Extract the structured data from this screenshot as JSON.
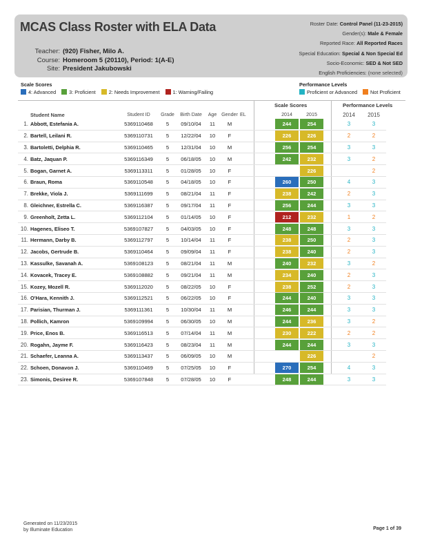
{
  "title": "MCAS Class Roster with ELA Data",
  "teacher_info": [
    {
      "label": "Teacher:",
      "value": "(920) Fisher, Milo A."
    },
    {
      "label": "Course:",
      "value": "Homeroom 5 (20110), Period: 1(A-E)"
    },
    {
      "label": "Site:",
      "value": "President Jakubowski"
    }
  ],
  "params": [
    {
      "label": "Roster Date:",
      "value": "Control Panel (11-23-2015)",
      "italic": false
    },
    {
      "label": "Gender(s):",
      "value": "Male & Female",
      "italic": false
    },
    {
      "label": "Reported Race:",
      "value": "All Reported Races",
      "italic": false
    },
    {
      "label": "Special Education:",
      "value": "Special & Non Special Ed",
      "italic": false
    },
    {
      "label": "Socio-Economic:",
      "value": "SED & Not SED",
      "italic": false
    },
    {
      "label": "English Proficiencies:",
      "value": "(none selected)",
      "italic": true
    }
  ],
  "scale_legend": {
    "title": "Scale Scores",
    "items": [
      {
        "label": "4: Advanced",
        "color": "#2a6ebb"
      },
      {
        "label": "3: Proficient",
        "color": "#58a03a"
      },
      {
        "label": "2: Needs Improvement",
        "color": "#d7b928"
      },
      {
        "label": "1: Warning/Failing",
        "color": "#b0231f"
      }
    ]
  },
  "perf_legend": {
    "title": "Performance Levels",
    "items": [
      {
        "label": "Proficient or Advanced",
        "color": "#24b3c4"
      },
      {
        "label": "Not Proficient",
        "color": "#f07f1e"
      }
    ]
  },
  "group_headers": {
    "scale": "Scale Scores",
    "perf": "Performance Levels"
  },
  "columns": {
    "name": "Student Name",
    "id": "Student ID",
    "grade": "Grade",
    "birth": "Birth Date",
    "age": "Age",
    "gender": "Gender",
    "el": "EL",
    "sc2014": "2014",
    "sc2015": "2015",
    "pl2014": "2014",
    "pl2015": "2015"
  },
  "level_colors": {
    "4": "#2a6ebb",
    "3": "#58a03a",
    "2": "#d7b928",
    "1": "#b0231f"
  },
  "perf_colors": {
    "proficient": "#24b3c4",
    "not_proficient": "#f07f1e"
  },
  "students": [
    {
      "num": "1.",
      "name": "Abbott, Estefania A.",
      "id": "5369110468",
      "grade": "5",
      "birth": "09/10/04",
      "age": "11",
      "gender": "M",
      "el": "",
      "s2014": "244",
      "l2014": 3,
      "s2015": "254",
      "l2015": 3
    },
    {
      "num": "2.",
      "name": "Bartell, Leilani R.",
      "id": "5369110731",
      "grade": "5",
      "birth": "12/22/04",
      "age": "10",
      "gender": "F",
      "el": "",
      "s2014": "226",
      "l2014": 2,
      "s2015": "226",
      "l2015": 2
    },
    {
      "num": "3.",
      "name": "Bartoletti, Delphia R.",
      "id": "5369110465",
      "grade": "5",
      "birth": "12/31/04",
      "age": "10",
      "gender": "M",
      "el": "",
      "s2014": "256",
      "l2014": 3,
      "s2015": "254",
      "l2015": 3
    },
    {
      "num": "4.",
      "name": "Batz, Jaquan P.",
      "id": "5369116349",
      "grade": "5",
      "birth": "06/18/05",
      "age": "10",
      "gender": "M",
      "el": "",
      "s2014": "242",
      "l2014": 3,
      "s2015": "232",
      "l2015": 2
    },
    {
      "num": "5.",
      "name": "Bogan, Garnet A.",
      "id": "5369113311",
      "grade": "5",
      "birth": "01/28/05",
      "age": "10",
      "gender": "F",
      "el": "",
      "s2014": "",
      "l2014": null,
      "s2015": "226",
      "l2015": 2
    },
    {
      "num": "6.",
      "name": "Braun, Roma",
      "id": "5369110548",
      "grade": "5",
      "birth": "04/18/05",
      "age": "10",
      "gender": "F",
      "el": "",
      "s2014": "260",
      "l2014": 4,
      "s2015": "250",
      "l2015": 3
    },
    {
      "num": "7.",
      "name": "Brekke, Viola J.",
      "id": "5369111699",
      "grade": "5",
      "birth": "08/21/04",
      "age": "11",
      "gender": "F",
      "el": "",
      "s2014": "238",
      "l2014": 2,
      "s2015": "242",
      "l2015": 3
    },
    {
      "num": "8.",
      "name": "Gleichner, Estrella C.",
      "id": "5369116387",
      "grade": "5",
      "birth": "09/17/04",
      "age": "11",
      "gender": "F",
      "el": "",
      "s2014": "256",
      "l2014": 3,
      "s2015": "244",
      "l2015": 3
    },
    {
      "num": "9.",
      "name": "Greenholt, Zetta L.",
      "id": "5369112104",
      "grade": "5",
      "birth": "01/14/05",
      "age": "10",
      "gender": "F",
      "el": "",
      "s2014": "212",
      "l2014": 1,
      "s2015": "232",
      "l2015": 2
    },
    {
      "num": "10.",
      "name": "Hagenes, Eliseo T.",
      "id": "5369107827",
      "grade": "5",
      "birth": "04/03/05",
      "age": "10",
      "gender": "F",
      "el": "",
      "s2014": "248",
      "l2014": 3,
      "s2015": "248",
      "l2015": 3
    },
    {
      "num": "11.",
      "name": "Hermann, Darby B.",
      "id": "5369112797",
      "grade": "5",
      "birth": "10/14/04",
      "age": "11",
      "gender": "F",
      "el": "",
      "s2014": "238",
      "l2014": 2,
      "s2015": "250",
      "l2015": 3
    },
    {
      "num": "12.",
      "name": "Jacobs, Gertrude B.",
      "id": "5369110464",
      "grade": "5",
      "birth": "09/09/04",
      "age": "11",
      "gender": "F",
      "el": "",
      "s2014": "238",
      "l2014": 2,
      "s2015": "240",
      "l2015": 3
    },
    {
      "num": "13.",
      "name": "Kassulke, Savanah A.",
      "id": "5369108123",
      "grade": "5",
      "birth": "08/21/04",
      "age": "11",
      "gender": "M",
      "el": "",
      "s2014": "240",
      "l2014": 3,
      "s2015": "232",
      "l2015": 2
    },
    {
      "num": "14.",
      "name": "Kovacek, Tracey E.",
      "id": "5369108882",
      "grade": "5",
      "birth": "09/21/04",
      "age": "11",
      "gender": "M",
      "el": "",
      "s2014": "234",
      "l2014": 2,
      "s2015": "240",
      "l2015": 3
    },
    {
      "num": "15.",
      "name": "Kozey, Mozell R.",
      "id": "5369112020",
      "grade": "5",
      "birth": "08/22/05",
      "age": "10",
      "gender": "F",
      "el": "",
      "s2014": "238",
      "l2014": 2,
      "s2015": "252",
      "l2015": 3
    },
    {
      "num": "16.",
      "name": "O'Hara, Kennith J.",
      "id": "5369112521",
      "grade": "5",
      "birth": "06/22/05",
      "age": "10",
      "gender": "F",
      "el": "",
      "s2014": "244",
      "l2014": 3,
      "s2015": "240",
      "l2015": 3
    },
    {
      "num": "17.",
      "name": "Parisian, Thurman J.",
      "id": "5369111361",
      "grade": "5",
      "birth": "10/30/04",
      "age": "11",
      "gender": "M",
      "el": "",
      "s2014": "246",
      "l2014": 3,
      "s2015": "244",
      "l2015": 3
    },
    {
      "num": "18.",
      "name": "Pollich, Kamron",
      "id": "5369109994",
      "grade": "5",
      "birth": "06/30/05",
      "age": "10",
      "gender": "M",
      "el": "",
      "s2014": "244",
      "l2014": 3,
      "s2015": "236",
      "l2015": 2
    },
    {
      "num": "19.",
      "name": "Price, Enos B.",
      "id": "5369116513",
      "grade": "5",
      "birth": "07/14/04",
      "age": "11",
      "gender": "M",
      "el": "",
      "s2014": "230",
      "l2014": 2,
      "s2015": "222",
      "l2015": 2
    },
    {
      "num": "20.",
      "name": "Rogahn, Jayme F.",
      "id": "5369116423",
      "grade": "5",
      "birth": "08/23/04",
      "age": "11",
      "gender": "M",
      "el": "",
      "s2014": "244",
      "l2014": 3,
      "s2015": "244",
      "l2015": 3
    },
    {
      "num": "21.",
      "name": "Schaefer, Leanna A.",
      "id": "5369113437",
      "grade": "5",
      "birth": "06/09/05",
      "age": "10",
      "gender": "M",
      "el": "",
      "s2014": "",
      "l2014": null,
      "s2015": "226",
      "l2015": 2
    },
    {
      "num": "22.",
      "name": "Schoen, Donavon J.",
      "id": "5369110469",
      "grade": "5",
      "birth": "07/25/05",
      "age": "10",
      "gender": "F",
      "el": "",
      "s2014": "270",
      "l2014": 4,
      "s2015": "254",
      "l2015": 3
    },
    {
      "num": "23.",
      "name": "Simonis, Desiree R.",
      "id": "5369107848",
      "grade": "5",
      "birth": "07/28/05",
      "age": "10",
      "gender": "F",
      "el": "",
      "s2014": "248",
      "l2014": 3,
      "s2015": "244",
      "l2015": 3
    }
  ],
  "footer": {
    "line1": "Generated on 11/23/2015",
    "line2": "by Illuminate Education",
    "page": "Page 1 of 39"
  }
}
